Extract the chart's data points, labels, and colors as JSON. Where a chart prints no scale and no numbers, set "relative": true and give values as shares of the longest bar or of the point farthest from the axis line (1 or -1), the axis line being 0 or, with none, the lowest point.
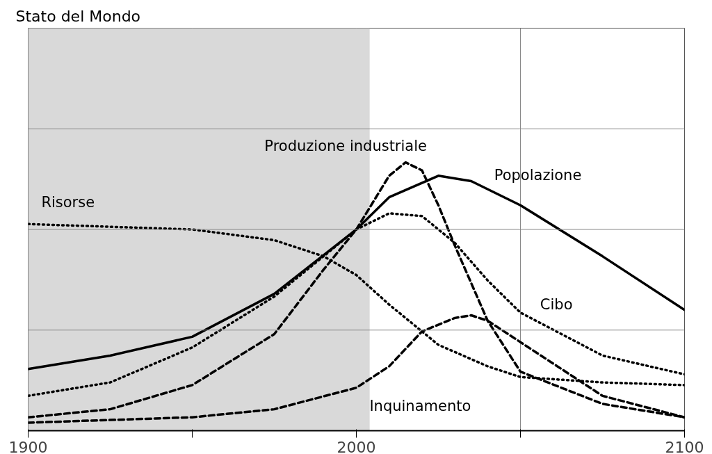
{
  "chart_data": {
    "type": "line",
    "title": "Stato del Mondo",
    "relative": true,
    "xlim": [
      1900,
      2100
    ],
    "xticks": [
      1900,
      {
        "value": 1950,
        "label": null
      },
      2000,
      {
        "value": 2050,
        "label": null
      },
      2100
    ],
    "tick_labels": "x",
    "grid": true,
    "marker": "none",
    "bands": [
      {
        "axis": "x",
        "from": 1900,
        "to": 2004,
        "label": null,
        "color": "#d9d9d9"
      }
    ],
    "series": [
      {
        "name": "Risorse",
        "color": "#000000",
        "line_style": "dotted",
        "x": [
          1900,
          1925,
          1950,
          1975,
          1990,
          2000,
          2010,
          2025,
          2040,
          2050,
          2075,
          2100
        ],
        "values": [
          0.77,
          0.76,
          0.75,
          0.71,
          0.65,
          0.58,
          0.47,
          0.32,
          0.24,
          0.2,
          0.18,
          0.17
        ]
      },
      {
        "name": "Produzione industriale",
        "color": "#000000",
        "line_style": "dashed",
        "x": [
          1900,
          1925,
          1950,
          1975,
          1990,
          2000,
          2010,
          2015,
          2020,
          2025,
          2030,
          2040,
          2050,
          2075,
          2100
        ],
        "values": [
          0.05,
          0.08,
          0.17,
          0.36,
          0.6,
          0.75,
          0.95,
          1.0,
          0.97,
          0.84,
          0.69,
          0.41,
          0.22,
          0.1,
          0.05
        ]
      },
      {
        "name": "Popolazione",
        "color": "#000000",
        "line_style": "solid",
        "x": [
          1900,
          1925,
          1950,
          1975,
          2000,
          2010,
          2025,
          2035,
          2050,
          2075,
          2100
        ],
        "values": [
          0.23,
          0.28,
          0.35,
          0.51,
          0.75,
          0.87,
          0.95,
          0.93,
          0.84,
          0.65,
          0.45
        ]
      },
      {
        "name": "Cibo",
        "color": "#000000",
        "line_style": "dotted",
        "x": [
          1900,
          1925,
          1950,
          1975,
          2000,
          2010,
          2020,
          2030,
          2040,
          2050,
          2075,
          2100
        ],
        "values": [
          0.13,
          0.18,
          0.31,
          0.5,
          0.75,
          0.81,
          0.8,
          0.7,
          0.56,
          0.44,
          0.28,
          0.21
        ]
      },
      {
        "name": "Inquinamento",
        "color": "#000000",
        "line_style": "dashed",
        "x": [
          1900,
          1950,
          1975,
          2000,
          2010,
          2020,
          2030,
          2035,
          2040,
          2050,
          2075,
          2100
        ],
        "values": [
          0.03,
          0.05,
          0.08,
          0.16,
          0.24,
          0.37,
          0.42,
          0.43,
          0.41,
          0.33,
          0.13,
          0.05
        ]
      }
    ]
  }
}
